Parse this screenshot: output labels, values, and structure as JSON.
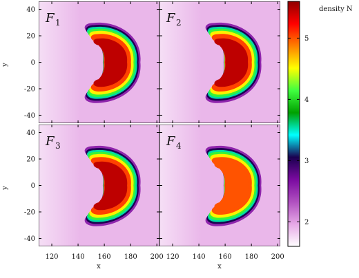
{
  "chart_data": {
    "type": "heatmap",
    "layout": "2x2 shared axes",
    "xlabel": "x",
    "ylabel": "y",
    "xlim": [
      110,
      202
    ],
    "ylim": [
      -46,
      46
    ],
    "x_ticks": [
      "120",
      "140",
      "160",
      "180",
      "200"
    ],
    "y_ticks": [
      "40",
      "20",
      "0",
      "-20",
      "-40"
    ],
    "colorbar": {
      "label": "density N",
      "range": [
        1.6,
        5.6
      ],
      "ticks": [
        "2",
        "3",
        "4",
        "5"
      ],
      "colors": [
        "#ffffff",
        "#e6a8e6",
        "#b050c0",
        "#7a0aa0",
        "#1a0050",
        "#00ffff",
        "#00a000",
        "#40ff40",
        "#ffff00",
        "#ff8000",
        "#ff0000",
        "#900000"
      ]
    },
    "panels": [
      {
        "label": "F",
        "subscript": "1",
        "background_level": 1.9,
        "peak_level": 5.5
      },
      {
        "label": "F",
        "subscript": "2",
        "background_level": 1.9,
        "peak_level": 5.5
      },
      {
        "label": "F",
        "subscript": "3",
        "background_level": 1.9,
        "peak_level": 5.5
      },
      {
        "label": "F",
        "subscript": "4",
        "background_level": 1.9,
        "peak_level": 5.0
      }
    ]
  }
}
